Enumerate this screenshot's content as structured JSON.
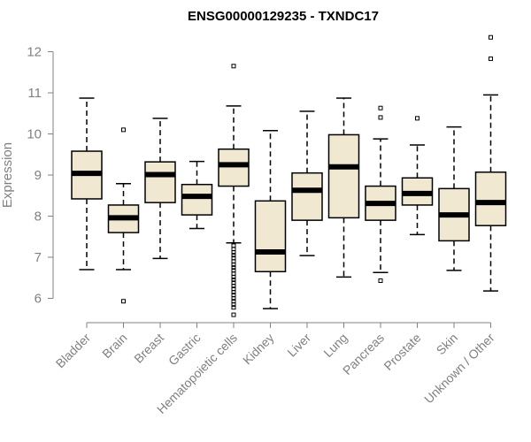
{
  "chart_data": {
    "type": "boxplot",
    "title": "ENSG00000129235 - TXNDC17",
    "xlabel": "",
    "ylabel": "Expression",
    "ylim": [
      5.5,
      12.5
    ],
    "yticks": [
      6,
      7,
      8,
      9,
      10,
      11,
      12
    ],
    "grid": false,
    "box_fill": "#f0e8d0",
    "categories": [
      "Bladder",
      "Brain",
      "Breast",
      "Gastric",
      "Hematopoietic cells",
      "Kidney",
      "Liver",
      "Lung",
      "Pancreas",
      "Prostate",
      "Skin",
      "Unknown / Other"
    ],
    "boxes": [
      {
        "name": "Bladder",
        "whisker_low": 6.7,
        "q1": 8.42,
        "median": 9.04,
        "q3": 9.58,
        "whisker_high": 10.87,
        "outliers": []
      },
      {
        "name": "Brain",
        "whisker_low": 6.7,
        "q1": 7.6,
        "median": 7.96,
        "q3": 8.27,
        "whisker_high": 8.79,
        "outliers": [
          10.1,
          5.93
        ]
      },
      {
        "name": "Breast",
        "whisker_low": 6.97,
        "q1": 8.33,
        "median": 9.01,
        "q3": 9.32,
        "whisker_high": 10.38,
        "outliers": []
      },
      {
        "name": "Gastric",
        "whisker_low": 7.7,
        "q1": 8.03,
        "median": 8.48,
        "q3": 8.77,
        "whisker_high": 9.33,
        "outliers": []
      },
      {
        "name": "Hematopoietic cells",
        "whisker_low": 7.35,
        "q1": 8.73,
        "median": 9.25,
        "q3": 9.63,
        "whisker_high": 10.68,
        "outliers": [
          11.65,
          7.28,
          7.2,
          7.12,
          7.05,
          6.98,
          6.9,
          6.82,
          6.75,
          6.68,
          6.6,
          6.52,
          6.45,
          6.38,
          6.3,
          6.23,
          6.15,
          6.08,
          6.0,
          5.93,
          5.85,
          5.78,
          5.6
        ]
      },
      {
        "name": "Kidney",
        "whisker_low": 5.75,
        "q1": 6.65,
        "median": 7.13,
        "q3": 8.37,
        "whisker_high": 10.08,
        "outliers": []
      },
      {
        "name": "Liver",
        "whisker_low": 7.04,
        "q1": 7.9,
        "median": 8.63,
        "q3": 9.05,
        "whisker_high": 10.55,
        "outliers": []
      },
      {
        "name": "Lung",
        "whisker_low": 6.52,
        "q1": 7.96,
        "median": 9.2,
        "q3": 9.98,
        "whisker_high": 10.87,
        "outliers": []
      },
      {
        "name": "Pancreas",
        "whisker_low": 6.63,
        "q1": 7.9,
        "median": 8.31,
        "q3": 8.73,
        "whisker_high": 9.88,
        "outliers": [
          10.63,
          10.4,
          6.43
        ]
      },
      {
        "name": "Prostate",
        "whisker_low": 7.55,
        "q1": 8.27,
        "median": 8.55,
        "q3": 8.93,
        "whisker_high": 9.73,
        "outliers": [
          10.38
        ]
      },
      {
        "name": "Skin",
        "whisker_low": 6.68,
        "q1": 7.4,
        "median": 8.03,
        "q3": 8.67,
        "whisker_high": 10.17,
        "outliers": []
      },
      {
        "name": "Unknown / Other",
        "whisker_low": 6.18,
        "q1": 7.77,
        "median": 8.33,
        "q3": 9.07,
        "whisker_high": 10.95,
        "outliers": [
          12.35,
          11.83
        ]
      }
    ]
  }
}
